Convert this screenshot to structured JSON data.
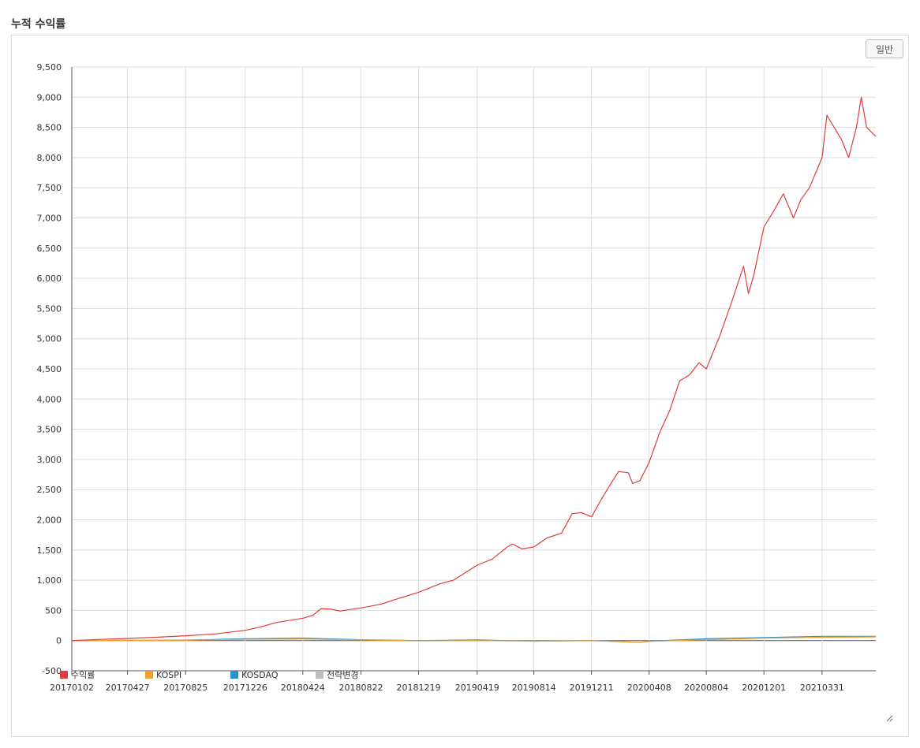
{
  "page": {
    "title": "누적 수익률"
  },
  "toolbar": {
    "mode_label": "일반"
  },
  "chart_data": {
    "type": "line",
    "title": "",
    "xlabel": "",
    "ylabel": "",
    "ylim": [
      -500,
      9500
    ],
    "yticks": [
      -500,
      0,
      500,
      1000,
      1500,
      2000,
      2500,
      3000,
      3500,
      4000,
      4500,
      5000,
      5500,
      6000,
      6500,
      7000,
      7500,
      8000,
      8500,
      9000,
      9500
    ],
    "xticks": [
      "20170102",
      "20170427",
      "20170825",
      "20171226",
      "20180424",
      "20180822",
      "20181219",
      "20190419",
      "20190814",
      "20191211",
      "20200408",
      "20200804",
      "20201201",
      "20210331"
    ],
    "x_end": "20210720",
    "grid": true,
    "legend_position": "bottom-left",
    "series": [
      {
        "name": "수익률",
        "color": "#e03c3c",
        "points": [
          [
            "20170102",
            0
          ],
          [
            "20170301",
            20
          ],
          [
            "20170427",
            35
          ],
          [
            "20170625",
            55
          ],
          [
            "20170825",
            80
          ],
          [
            "20171025",
            110
          ],
          [
            "20171226",
            170
          ],
          [
            "20180124",
            220
          ],
          [
            "20180301",
            300
          ],
          [
            "20180424",
            370
          ],
          [
            "20180515",
            420
          ],
          [
            "20180601",
            530
          ],
          [
            "20180622",
            520
          ],
          [
            "20180710",
            490
          ],
          [
            "20180822",
            540
          ],
          [
            "20181001",
            600
          ],
          [
            "20181101",
            680
          ],
          [
            "20181219",
            800
          ],
          [
            "20190201",
            940
          ],
          [
            "20190301",
            1000
          ],
          [
            "20190419",
            1250
          ],
          [
            "20190520",
            1350
          ],
          [
            "20190620",
            1550
          ],
          [
            "20190701",
            1600
          ],
          [
            "20190720",
            1520
          ],
          [
            "20190814",
            1550
          ],
          [
            "20190910",
            1700
          ],
          [
            "20191010",
            1780
          ],
          [
            "20191101",
            2100
          ],
          [
            "20191120",
            2120
          ],
          [
            "20191211",
            2050
          ],
          [
            "20200101",
            2350
          ],
          [
            "20200120",
            2600
          ],
          [
            "20200205",
            2800
          ],
          [
            "20200225",
            2780
          ],
          [
            "20200305",
            2600
          ],
          [
            "20200320",
            2650
          ],
          [
            "20200408",
            2950
          ],
          [
            "20200430",
            3450
          ],
          [
            "20200520",
            3800
          ],
          [
            "20200610",
            4300
          ],
          [
            "20200630",
            4400
          ],
          [
            "20200720",
            4600
          ],
          [
            "20200804",
            4500
          ],
          [
            "20200901",
            5050
          ],
          [
            "20200925",
            5600
          ],
          [
            "20201020",
            6200
          ],
          [
            "20201030",
            5750
          ],
          [
            "20201110",
            6050
          ],
          [
            "20201201",
            6850
          ],
          [
            "20201220",
            7100
          ],
          [
            "20210110",
            7400
          ],
          [
            "20210131",
            7000
          ],
          [
            "20210215",
            7300
          ],
          [
            "20210305",
            7500
          ],
          [
            "20210331",
            8000
          ],
          [
            "20210410",
            8700
          ],
          [
            "20210425",
            8500
          ],
          [
            "20210510",
            8300
          ],
          [
            "20210525",
            8000
          ],
          [
            "20210610",
            8500
          ],
          [
            "20210620",
            9000
          ],
          [
            "20210701",
            8500
          ],
          [
            "20210720",
            8350
          ]
        ]
      },
      {
        "name": "KOSPI",
        "color": "#f0a030",
        "points": [
          [
            "20170102",
            0
          ],
          [
            "20170825",
            5
          ],
          [
            "20171226",
            20
          ],
          [
            "20180424",
            25
          ],
          [
            "20180822",
            10
          ],
          [
            "20181219",
            -5
          ],
          [
            "20190419",
            0
          ],
          [
            "20190814",
            -10
          ],
          [
            "20191211",
            -3
          ],
          [
            "20200320",
            -30
          ],
          [
            "20200408",
            -15
          ],
          [
            "20200804",
            15
          ],
          [
            "20201201",
            40
          ],
          [
            "20210331",
            55
          ],
          [
            "20210720",
            60
          ]
        ]
      },
      {
        "name": "KOSDAQ",
        "color": "#2592cf",
        "points": [
          [
            "20170102",
            0
          ],
          [
            "20170825",
            8
          ],
          [
            "20171226",
            30
          ],
          [
            "20180424",
            40
          ],
          [
            "20180822",
            15
          ],
          [
            "20181219",
            0
          ],
          [
            "20190419",
            10
          ],
          [
            "20190814",
            -10
          ],
          [
            "20191211",
            0
          ],
          [
            "20200320",
            -30
          ],
          [
            "20200408",
            -10
          ],
          [
            "20200804",
            30
          ],
          [
            "20201201",
            50
          ],
          [
            "20210331",
            70
          ],
          [
            "20210720",
            70
          ]
        ]
      },
      {
        "name": "전략변경",
        "color": "#bdbdbd",
        "points": []
      }
    ]
  }
}
